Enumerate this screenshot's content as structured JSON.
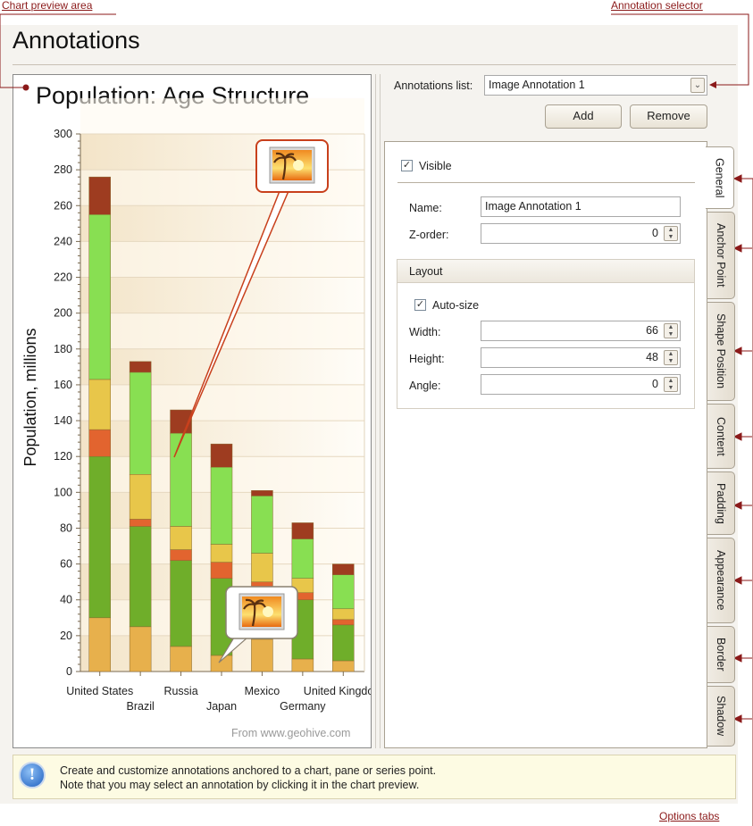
{
  "callouts": {
    "chart_preview": "Chart preview area",
    "annotation_selector": "Annotation selector",
    "options_tabs": "Options tabs"
  },
  "header": {
    "title": "Annotations"
  },
  "chart_data": {
    "type": "bar",
    "stacked": true,
    "title": "Population: Age Structure",
    "ylabel": "Population, millions",
    "ylim": [
      0,
      300
    ],
    "ytick_step": 20,
    "yticks": [
      "0",
      "20",
      "40",
      "60",
      "80",
      "100",
      "120",
      "140",
      "160",
      "180",
      "200",
      "220",
      "240",
      "260",
      "280",
      "300"
    ],
    "categories": [
      "United States",
      "Brazil",
      "Russia",
      "Japan",
      "Mexico",
      "Germany",
      "United Kingdom"
    ],
    "series_colors": [
      "#e7b04c",
      "#6fae2a",
      "#e2642f",
      "#e8c64a",
      "#88df52",
      "#9e3c20"
    ],
    "series": [
      {
        "values": [
          30,
          25,
          14,
          9,
          18,
          7,
          6
        ]
      },
      {
        "values": [
          90,
          56,
          48,
          43,
          29,
          33,
          20
        ]
      },
      {
        "values": [
          15,
          4,
          6,
          9,
          3,
          4,
          3
        ]
      },
      {
        "values": [
          28,
          25,
          13,
          10,
          16,
          8,
          6
        ]
      },
      {
        "values": [
          92,
          57,
          52,
          43,
          32,
          22,
          19
        ]
      },
      {
        "values": [
          21,
          6,
          13,
          13,
          3,
          9,
          6
        ]
      }
    ],
    "grid": true,
    "source": "From www.geohive.com",
    "annotations": [
      {
        "type": "image",
        "icon": "palm-beach-image-icon",
        "anchor": "Russia",
        "selected": true
      },
      {
        "type": "image",
        "icon": "palm-beach-image-icon",
        "anchor": "Japan",
        "selected": false
      }
    ]
  },
  "selector": {
    "label": "Annotations list:",
    "value": "Image Annotation 1",
    "add": "Add",
    "remove": "Remove"
  },
  "general": {
    "visible_label": "Visible",
    "visible": true,
    "name_label": "Name:",
    "name_value": "Image Annotation 1",
    "zorder_label": "Z-order:",
    "zorder_value": "0",
    "layout_title": "Layout",
    "autosize_label": "Auto-size",
    "autosize": true,
    "width_label": "Width:",
    "width_value": "66",
    "height_label": "Height:",
    "height_value": "48",
    "angle_label": "Angle:",
    "angle_value": "0"
  },
  "tabs": [
    "General",
    "Anchor Point",
    "Shape Position",
    "Content",
    "Padding",
    "Appearance",
    "Border",
    "Shadow"
  ],
  "active_tab": "General",
  "info": {
    "icon": "info-icon",
    "line1": "Create and customize annotations anchored to a chart, pane or series point.",
    "line2": "Note that you may select an annotation by clicking it in the chart preview."
  },
  "colors": {
    "callout": "#8b1a1a",
    "accent_border": "#c8401c"
  }
}
